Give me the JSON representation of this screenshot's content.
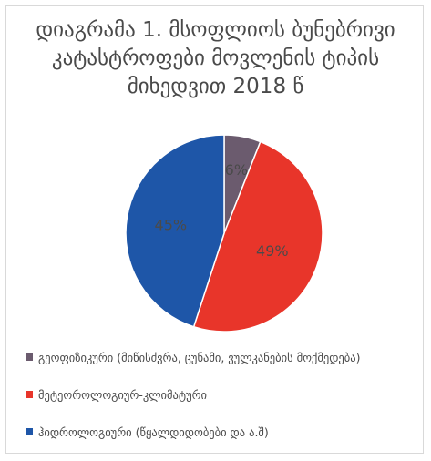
{
  "chart_data": {
    "type": "pie",
    "title": "დიაგრამა 1. მსოფლიოს ბუნებრივი კატასტროფები მოვლენის ტიპის მიხედვით 2018 წ",
    "slices": [
      {
        "label": "გეოფიზიკური (მიწისძვრა, ცუნამი, ვულკანების მოქმედება)",
        "value": 6,
        "data_label": "6%",
        "color": "#6b5b6e"
      },
      {
        "label": "მეტეოროლოგიურ-კლიმატური",
        "value": 49,
        "data_label": "49%",
        "color": "#e8352a"
      },
      {
        "label": "ჰიდროლოგიური (წყალდიდობები და ა.შ)",
        "value": 45,
        "data_label": "45%",
        "color": "#1e56a8"
      }
    ],
    "legend_position": "bottom"
  }
}
